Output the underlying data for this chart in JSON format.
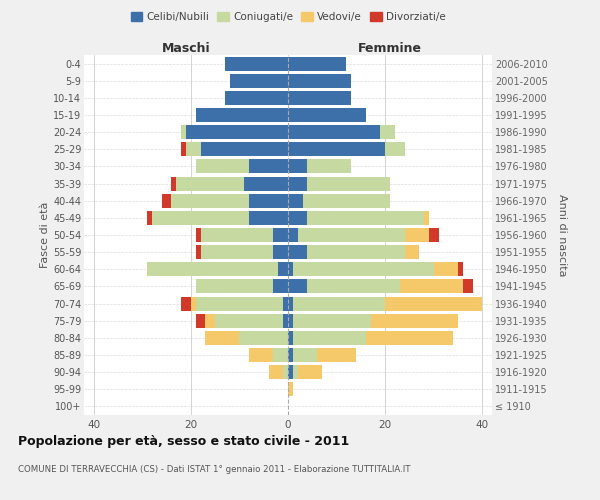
{
  "age_groups": [
    "100+",
    "95-99",
    "90-94",
    "85-89",
    "80-84",
    "75-79",
    "70-74",
    "65-69",
    "60-64",
    "55-59",
    "50-54",
    "45-49",
    "40-44",
    "35-39",
    "30-34",
    "25-29",
    "20-24",
    "15-19",
    "10-14",
    "5-9",
    "0-4"
  ],
  "birth_years": [
    "≤ 1910",
    "1911-1915",
    "1916-1920",
    "1921-1925",
    "1926-1930",
    "1931-1935",
    "1936-1940",
    "1941-1945",
    "1946-1950",
    "1951-1955",
    "1956-1960",
    "1961-1965",
    "1966-1970",
    "1971-1975",
    "1976-1980",
    "1981-1985",
    "1986-1990",
    "1991-1995",
    "1996-2000",
    "2001-2005",
    "2006-2010"
  ],
  "colors": {
    "celibi": "#3d6fa8",
    "coniugati": "#c5d9a0",
    "vedovi": "#f5c96a",
    "divorziati": "#d13a2b"
  },
  "maschi": {
    "celibi": [
      0,
      0,
      0,
      0,
      0,
      1,
      1,
      3,
      2,
      3,
      3,
      8,
      8,
      9,
      8,
      18,
      21,
      19,
      13,
      12,
      13
    ],
    "coniugati": [
      0,
      0,
      1,
      3,
      10,
      14,
      18,
      16,
      27,
      15,
      15,
      20,
      16,
      14,
      11,
      3,
      1,
      0,
      0,
      0,
      0
    ],
    "vedovi": [
      0,
      0,
      3,
      5,
      7,
      2,
      1,
      0,
      0,
      0,
      0,
      0,
      0,
      0,
      0,
      0,
      0,
      0,
      0,
      0,
      0
    ],
    "divorziati": [
      0,
      0,
      0,
      0,
      0,
      2,
      2,
      0,
      0,
      1,
      1,
      1,
      2,
      1,
      0,
      1,
      0,
      0,
      0,
      0,
      0
    ]
  },
  "femmine": {
    "celibi": [
      0,
      0,
      1,
      1,
      1,
      1,
      1,
      4,
      1,
      4,
      2,
      4,
      3,
      4,
      4,
      20,
      19,
      16,
      13,
      13,
      12
    ],
    "coniugati": [
      0,
      0,
      1,
      5,
      15,
      16,
      19,
      19,
      29,
      20,
      22,
      24,
      18,
      17,
      9,
      4,
      3,
      0,
      0,
      0,
      0
    ],
    "vedovi": [
      0,
      1,
      5,
      8,
      18,
      18,
      20,
      13,
      5,
      3,
      5,
      1,
      0,
      0,
      0,
      0,
      0,
      0,
      0,
      0,
      0
    ],
    "divorziati": [
      0,
      0,
      0,
      0,
      0,
      0,
      0,
      2,
      1,
      0,
      2,
      0,
      0,
      0,
      0,
      0,
      0,
      0,
      0,
      0,
      0
    ]
  },
  "title": "Popolazione per età, sesso e stato civile - 2011",
  "subtitle": "COMUNE DI TERRAVECCHIA (CS) - Dati ISTAT 1° gennaio 2011 - Elaborazione TUTTITALIA.IT",
  "ylabel_left": "Fasce di età",
  "ylabel_right": "Anni di nascita",
  "header_maschi": "Maschi",
  "header_femmine": "Femmine",
  "xlim": 42,
  "bg_color": "#f0f0f0",
  "plot_bg": "#ffffff",
  "grid_color": "#cccccc"
}
